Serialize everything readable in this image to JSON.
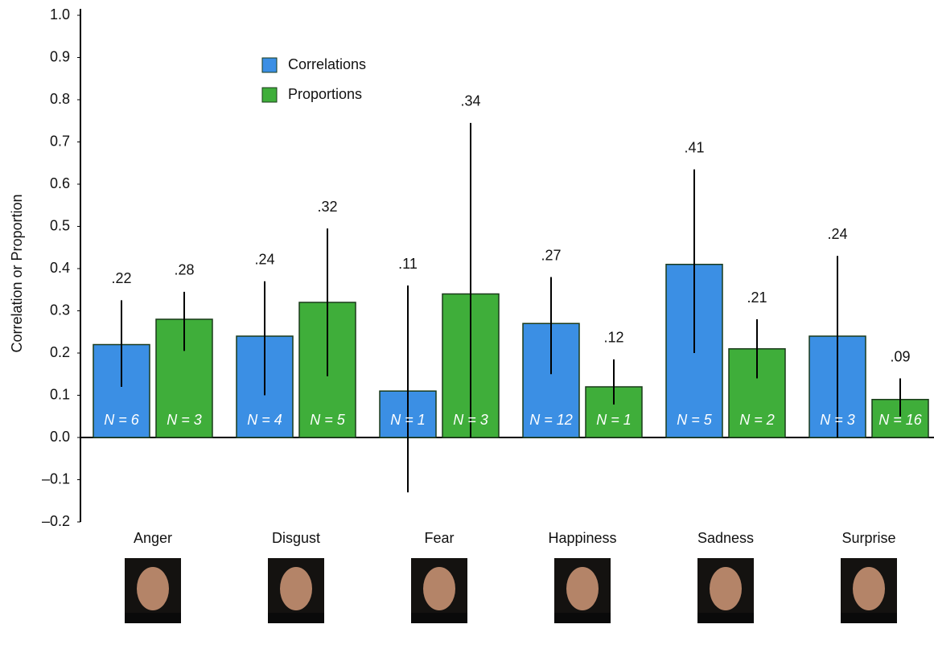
{
  "chart_data": {
    "type": "bar",
    "y_label": "Correlation or Proportion",
    "categories": [
      "Anger",
      "Disgust",
      "Fear",
      "Happiness",
      "Sadness",
      "Surprise"
    ],
    "series": [
      {
        "name": "Correlations",
        "color": "#3b8fe4",
        "values": [
          0.22,
          0.24,
          0.11,
          0.27,
          0.41,
          0.24
        ],
        "value_labels": [
          ".22",
          ".24",
          ".11",
          ".27",
          ".41",
          ".24"
        ],
        "error_low": [
          0.12,
          0.1,
          -0.13,
          0.15,
          0.2,
          0.0
        ],
        "error_high": [
          0.325,
          0.37,
          0.36,
          0.38,
          0.635,
          0.43
        ],
        "n_labels": [
          "N = 6",
          "N = 4",
          "N = 1",
          "N = 12",
          "N = 5",
          "N = 3"
        ]
      },
      {
        "name": "Proportions",
        "color": "#3fae3a",
        "values": [
          0.28,
          0.32,
          0.34,
          0.12,
          0.21,
          0.09
        ],
        "value_labels": [
          ".28",
          ".32",
          ".34",
          ".12",
          ".21",
          ".09"
        ],
        "error_low": [
          0.205,
          0.145,
          0.0,
          0.078,
          0.14,
          0.05
        ],
        "error_high": [
          0.345,
          0.495,
          0.745,
          0.185,
          0.28,
          0.14
        ],
        "n_labels": [
          "N = 3",
          "N = 5",
          "N = 3",
          "N = 1",
          "N = 2",
          "N = 16"
        ]
      }
    ],
    "ylim": [
      -0.2,
      1.0
    ],
    "yticks": [
      {
        "value": -0.2,
        "label": "–0.2"
      },
      {
        "value": -0.1,
        "label": "–0.1"
      },
      {
        "value": 0,
        "label": "0.0"
      },
      {
        "value": 0.1,
        "label": "0.1"
      },
      {
        "value": 0.2,
        "label": "0.2"
      },
      {
        "value": 0.3,
        "label": "0.3"
      },
      {
        "value": 0.4,
        "label": "0.4"
      },
      {
        "value": 0.5,
        "label": "0.5"
      },
      {
        "value": 0.6,
        "label": "0.6"
      },
      {
        "value": 0.7,
        "label": "0.7"
      },
      {
        "value": 0.8,
        "label": "0.8"
      },
      {
        "value": 0.9,
        "label": "0.9"
      },
      {
        "value": 1.0,
        "label": "1.0"
      }
    ],
    "legend": "upper-left"
  }
}
